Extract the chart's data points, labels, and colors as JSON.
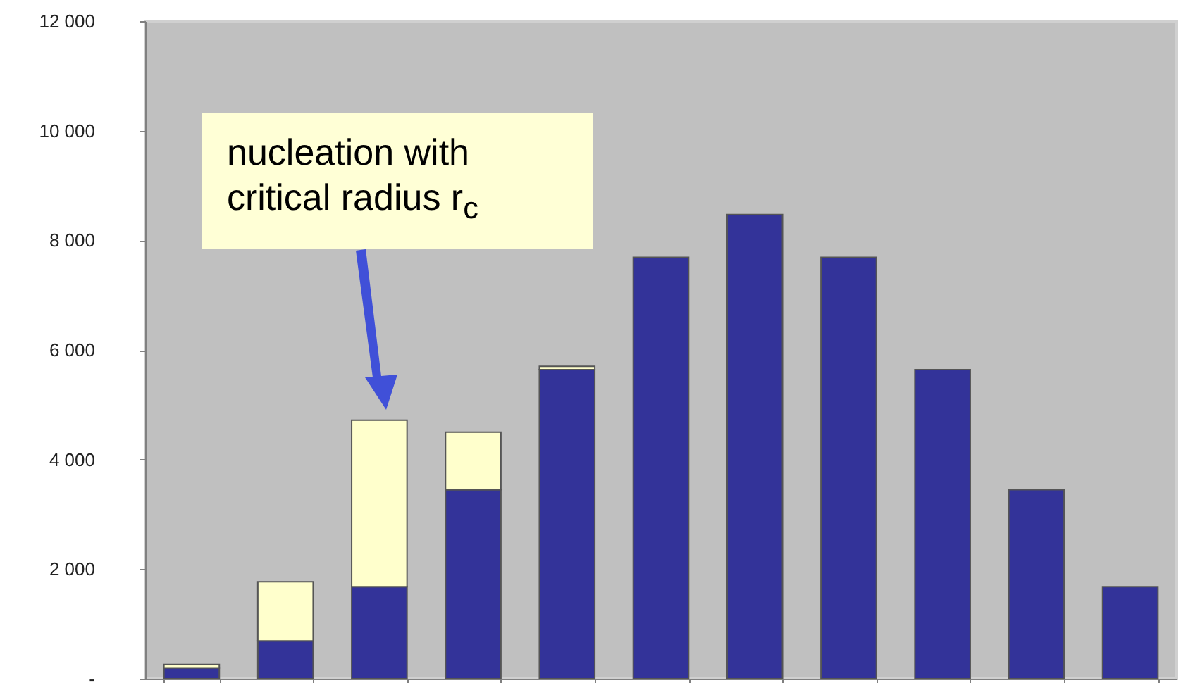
{
  "chart_data": {
    "type": "bar",
    "stacked": true,
    "categories": [
      null,
      null,
      null,
      null,
      null,
      null,
      null,
      null,
      null,
      null,
      null
    ],
    "series": [
      {
        "color": "#333399",
        "values": [
          200,
          690,
          1680,
          3450,
          5640,
          7690,
          8470,
          7690,
          5640,
          3450,
          1680
        ]
      },
      {
        "color": "#ffffcc",
        "values": [
          60,
          1080,
          3040,
          1050,
          60,
          null,
          null,
          null,
          null,
          null,
          null
        ]
      }
    ],
    "ylim": [
      0,
      12000
    ],
    "yticks": [
      {
        "value": 0,
        "label": "-"
      },
      {
        "value": 2000,
        "label": "2 000"
      },
      {
        "value": 4000,
        "label": "4 000"
      },
      {
        "value": 6000,
        "label": "6 000"
      },
      {
        "value": 8000,
        "label": "8 000"
      },
      {
        "value": 10000,
        "label": "10 000"
      },
      {
        "value": 12000,
        "label": "12 000"
      }
    ],
    "tick_labels": "y",
    "grid": false,
    "annotations": [
      "nucleation with critical radius r$_{c}$"
    ]
  }
}
